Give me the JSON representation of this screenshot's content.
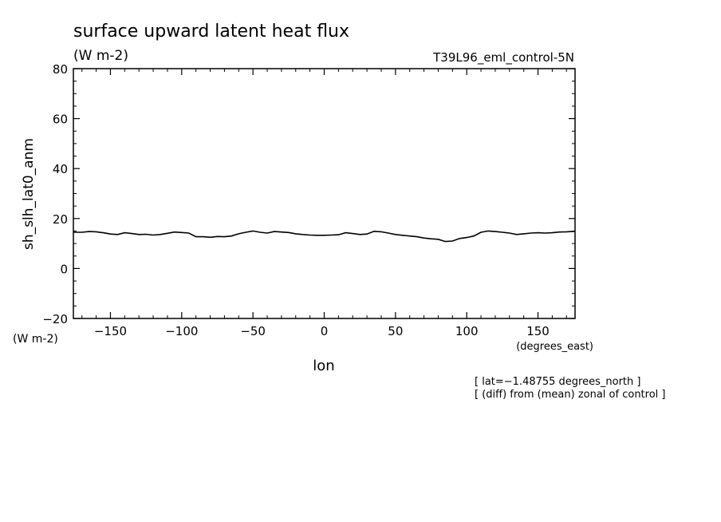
{
  "chart_data": {
    "type": "line",
    "title": "surface upward latent heat flux",
    "title_units": "(W m-2)",
    "experiment": "T39L96_eml_control-5N",
    "ylabel": "sh_slh_lat0_anm",
    "ylabel_units": "(W m-2)",
    "xlabel": "lon",
    "xlabel_units": "(degrees_east)",
    "xlim": [
      -176,
      176
    ],
    "ylim": [
      -20,
      80
    ],
    "xticks": [
      -150,
      -100,
      -50,
      0,
      50,
      100,
      150
    ],
    "xtick_labels": [
      "−150",
      "−100",
      "−50",
      "0",
      "50",
      "100",
      "150"
    ],
    "yticks": [
      -20,
      0,
      20,
      40,
      60,
      80
    ],
    "ytick_labels": [
      "−20",
      "0",
      "20",
      "40",
      "60",
      "80"
    ],
    "notes": [
      "[ lat=−1.48755 degrees_north ]",
      "[ (diff) from (mean) zonal of control ]"
    ],
    "grid": false,
    "series": [
      {
        "x": [
          -176,
          -170,
          -165,
          -160,
          -155,
          -150,
          -145,
          -140,
          -135,
          -130,
          -125,
          -120,
          -115,
          -110,
          -105,
          -100,
          -95,
          -90,
          -85,
          -80,
          -75,
          -70,
          -65,
          -60,
          -55,
          -50,
          -45,
          -40,
          -35,
          -30,
          -25,
          -20,
          -15,
          -10,
          -5,
          0,
          5,
          10,
          15,
          20,
          25,
          30,
          35,
          40,
          45,
          50,
          55,
          60,
          65,
          70,
          75,
          80,
          85,
          90,
          95,
          100,
          105,
          110,
          115,
          120,
          125,
          130,
          135,
          140,
          145,
          150,
          155,
          160,
          165,
          170,
          176
        ],
        "values": [
          14.5,
          14.5,
          14.8,
          14.7,
          14.3,
          13.8,
          13.6,
          14.3,
          14.0,
          13.6,
          13.7,
          13.4,
          13.6,
          14.1,
          14.6,
          14.4,
          14.2,
          12.7,
          12.7,
          12.5,
          12.8,
          12.7,
          13.0,
          13.9,
          14.5,
          15.0,
          14.5,
          14.2,
          14.8,
          14.6,
          14.4,
          13.9,
          13.6,
          13.4,
          13.3,
          13.3,
          13.4,
          13.5,
          14.3,
          14.0,
          13.6,
          13.8,
          14.9,
          14.7,
          14.2,
          13.6,
          13.3,
          13.0,
          12.7,
          12.2,
          11.9,
          11.7,
          10.8,
          11.0,
          12.0,
          12.4,
          13.0,
          14.5,
          15.0,
          14.8,
          14.5,
          14.2,
          13.6,
          13.9,
          14.2,
          14.3,
          14.2,
          14.3,
          14.6,
          14.7,
          14.9
        ]
      }
    ]
  }
}
